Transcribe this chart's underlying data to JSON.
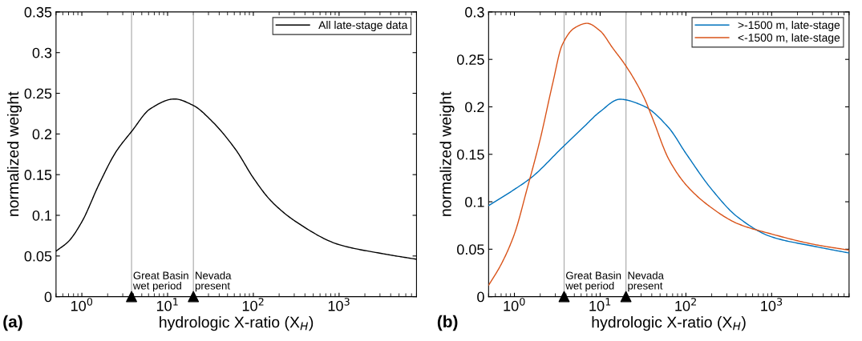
{
  "chart_data": [
    {
      "type": "line",
      "xlabel": "hydrologic X-ratio (X$_{H}$)",
      "ylabel": "normalized weight",
      "log": "x",
      "legend": "top right",
      "xlim": [
        0.5,
        8000
      ],
      "ylim": [
        0,
        0.35
      ],
      "xticks": [
        {
          "value": 1,
          "label": "10$^{0}$"
        },
        {
          "value": 10,
          "label": "10$^{1}$"
        },
        {
          "value": 100,
          "label": "10$^{2}$"
        },
        {
          "value": 1000,
          "label": "10$^{3}$"
        }
      ],
      "yticks": [
        0,
        0.05,
        0.1,
        0.15,
        0.2,
        0.25,
        0.3,
        0.35
      ],
      "series": [
        {
          "name": "All late-stage data",
          "color": "#000000",
          "x": [
            0.5,
            0.7,
            1,
            1.6,
            2.5,
            3.8,
            6.3,
            12,
            20,
            32,
            63,
            100,
            160,
            316,
            1000,
            3160,
            8000
          ],
          "values": [
            0.056,
            0.068,
            0.092,
            0.139,
            0.178,
            0.203,
            0.231,
            0.243,
            0.235,
            0.217,
            0.18,
            0.146,
            0.118,
            0.092,
            0.064,
            0.053,
            0.046
          ]
        },
        {
          "type": "scatter",
          "color": "#000000",
          "marker": "triangle",
          "x": [
            3.8,
            20
          ],
          "values": [
            0,
            0
          ]
        }
      ],
      "ref_lines": [
        {
          "axis": "x",
          "value": 3.8,
          "label": "Great Basin\nwet period",
          "color": "#b0b0b0"
        },
        {
          "axis": "x",
          "value": 20,
          "label": "Nevada\npresent",
          "color": "#b0b0b0"
        }
      ],
      "annotations": [
        "(a)"
      ]
    },
    {
      "type": "line",
      "xlabel": "hydrologic X-ratio (X$_{H}$)",
      "ylabel": "normalized weight",
      "log": "x",
      "legend": "top right",
      "xlim": [
        0.5,
        8000
      ],
      "ylim": [
        0,
        0.3
      ],
      "xticks": [
        {
          "value": 1,
          "label": "10$^{0}$"
        },
        {
          "value": 10,
          "label": "10$^{1}$"
        },
        {
          "value": 100,
          "label": "10$^{2}$"
        },
        {
          "value": 1000,
          "label": "10$^{3}$"
        }
      ],
      "yticks": [
        0,
        0.05,
        0.1,
        0.15,
        0.2,
        0.25,
        0.3
      ],
      "series": [
        {
          "name": ">-1500 m, late-stage",
          "color": "#0072bd",
          "x": [
            0.5,
            1,
            1.6,
            3.6,
            6.3,
            10,
            17,
            32,
            63,
            100,
            200,
            400,
            1000,
            3160,
            8000
          ],
          "values": [
            0.096,
            0.113,
            0.126,
            0.157,
            0.178,
            0.195,
            0.208,
            0.201,
            0.178,
            0.151,
            0.113,
            0.084,
            0.063,
            0.053,
            0.046
          ]
        },
        {
          "name": "<-1500 m, late-stage",
          "color": "#d95319",
          "x": [
            0.5,
            0.7,
            1,
            1.4,
            2,
            2.8,
            3.6,
            5,
            7,
            10,
            14,
            20,
            32,
            40,
            63,
            100,
            190,
            400,
            1000,
            3160,
            8000
          ],
          "values": [
            0.012,
            0.034,
            0.066,
            0.113,
            0.166,
            0.225,
            0.265,
            0.283,
            0.288,
            0.28,
            0.262,
            0.243,
            0.211,
            0.19,
            0.145,
            0.118,
            0.095,
            0.077,
            0.066,
            0.055,
            0.049
          ]
        },
        {
          "type": "scatter",
          "color": "#000000",
          "marker": "triangle",
          "x": [
            3.8,
            20
          ],
          "values": [
            0,
            0
          ]
        }
      ],
      "ref_lines": [
        {
          "axis": "x",
          "value": 3.8,
          "label": "Great Basin\nwet period",
          "color": "#b0b0b0"
        },
        {
          "axis": "x",
          "value": 20,
          "label": "Nevada\npresent",
          "color": "#b0b0b0"
        }
      ],
      "annotations": [
        "(b)"
      ]
    }
  ]
}
